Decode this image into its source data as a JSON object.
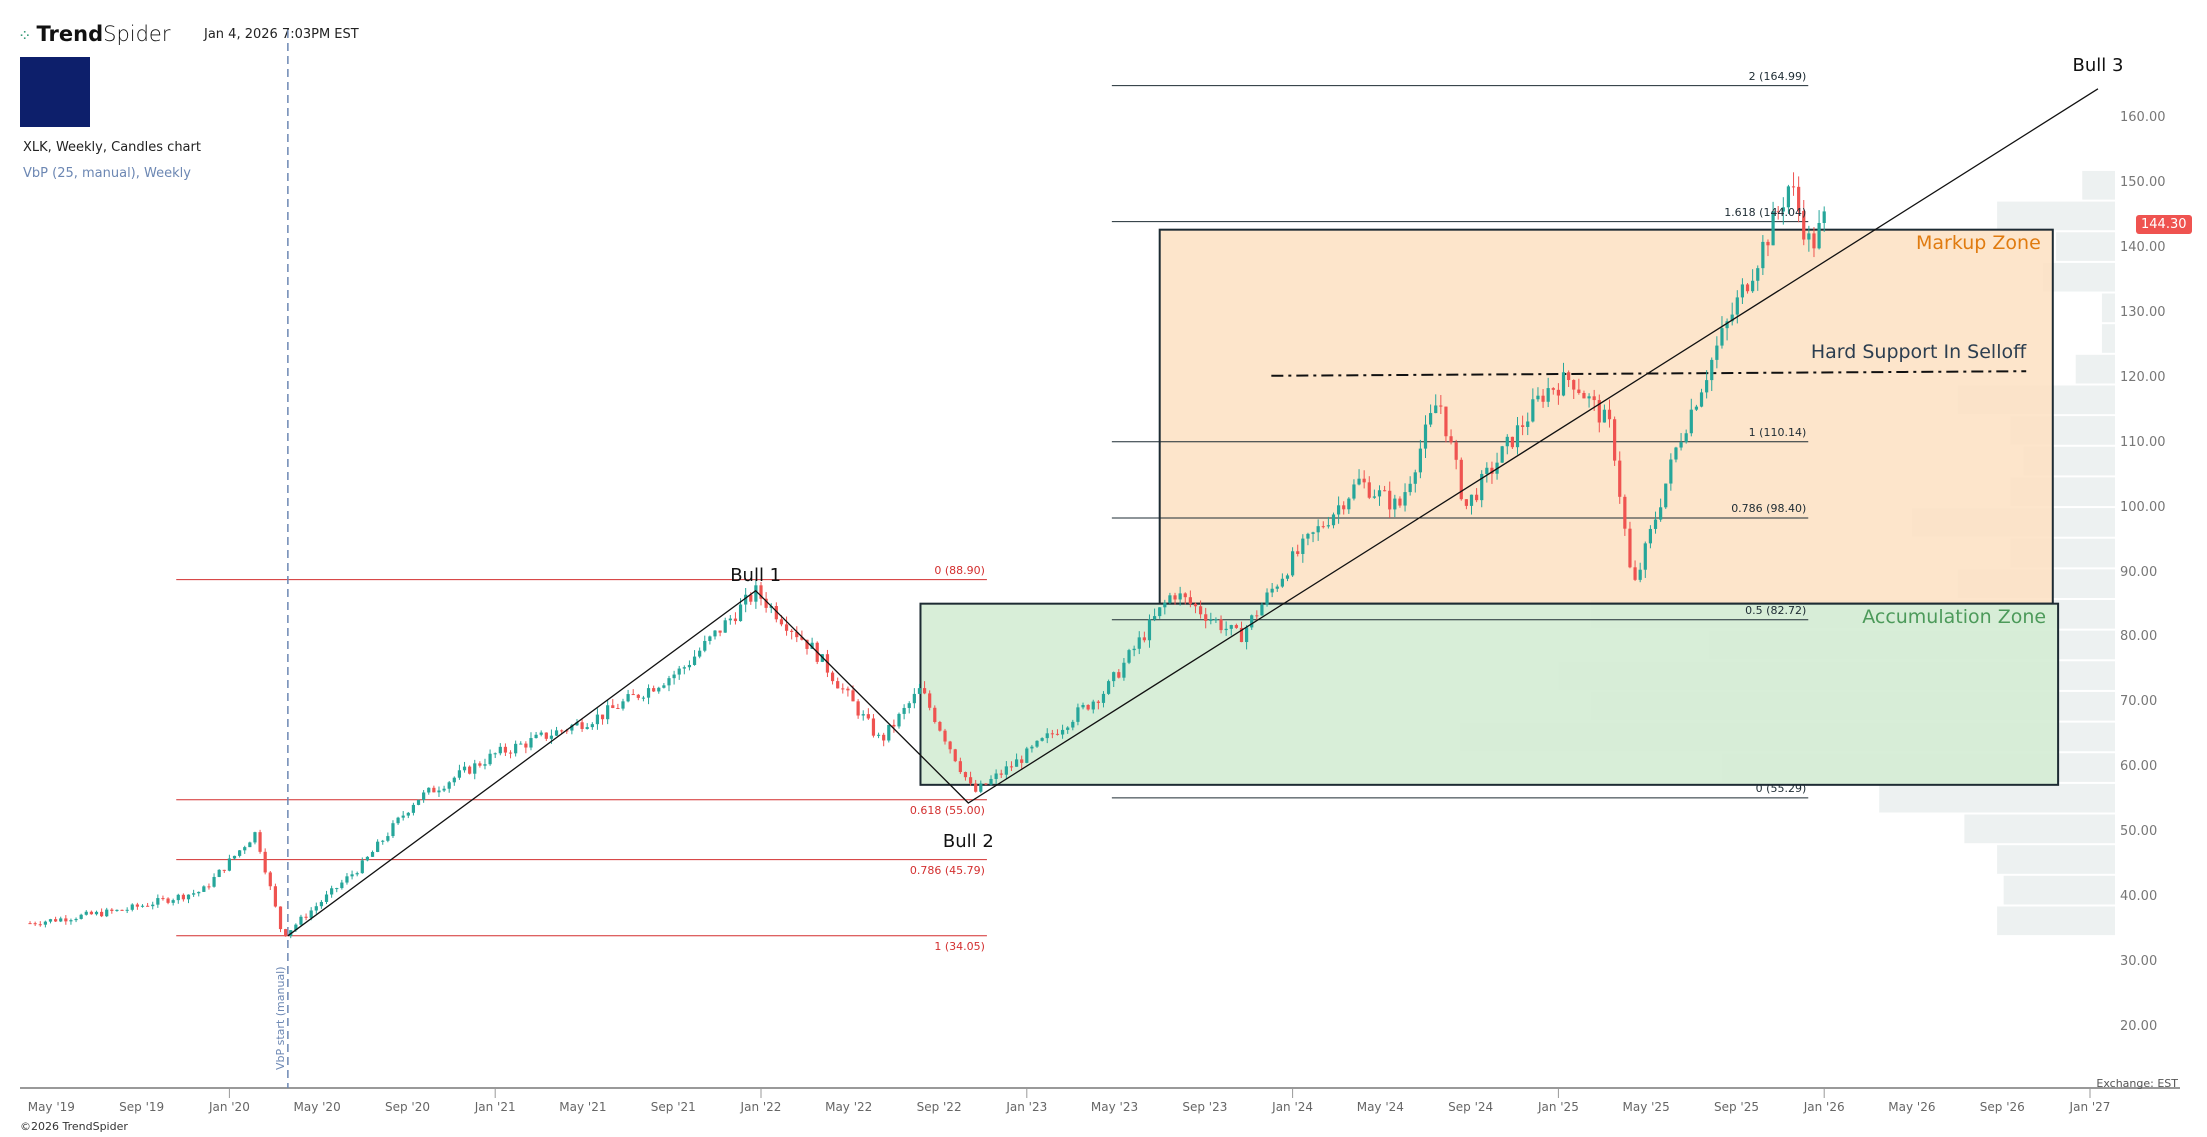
{
  "header": {
    "brand_bold": "Trend",
    "brand_light": "Spider",
    "timestamp": "Jan 4, 2026 7:03PM EST",
    "symbol_line": "XLK, Weekly, Candles chart",
    "indicator_line": "VbP (25, manual), Weekly"
  },
  "footer": {
    "copyright": "©2026 TrendSpider",
    "exchange": "Exchange: EST"
  },
  "colors": {
    "up": "#26a69a",
    "down": "#ef5350",
    "markup": "#fde0c2",
    "accum": "#d4ecd4",
    "red_fib": "#d32f2f"
  },
  "chart_data": {
    "type": "candlestick",
    "title": "XLK, Weekly, Candles chart",
    "last_price": "144.30",
    "y_ticks": [
      "160.00",
      "150.00",
      "140.00",
      "130.00",
      "120.00",
      "110.00",
      "100.00",
      "90.00",
      "80.00",
      "70.00",
      "60.00",
      "50.00",
      "40.00",
      "30.00",
      "20.00"
    ],
    "y_tick_values": [
      160,
      150,
      140,
      130,
      120,
      110,
      100,
      90,
      80,
      70,
      60,
      50,
      40,
      30,
      20
    ],
    "x_ticks": [
      [
        "May '19",
        2019.33
      ],
      [
        "Sep '19",
        2019.67
      ],
      [
        "Jan '20",
        2020.0
      ],
      [
        "May '20",
        2020.33
      ],
      [
        "Sep '20",
        2020.67
      ],
      [
        "Jan '21",
        2021.0
      ],
      [
        "May '21",
        2021.33
      ],
      [
        "Sep '21",
        2021.67
      ],
      [
        "Jan '22",
        2022.0
      ],
      [
        "May '22",
        2022.33
      ],
      [
        "Sep '22",
        2022.67
      ],
      [
        "Jan '23",
        2023.0
      ],
      [
        "May '23",
        2023.33
      ],
      [
        "Sep '23",
        2023.67
      ],
      [
        "Jan '24",
        2024.0
      ],
      [
        "May '24",
        2024.33
      ],
      [
        "Sep '24",
        2024.67
      ],
      [
        "Jan '25",
        2025.0
      ],
      [
        "May '25",
        2025.33
      ],
      [
        "Sep '25",
        2025.67
      ],
      [
        "Jan '26",
        2026.0
      ],
      [
        "May '26",
        2026.33
      ],
      [
        "Sep '26",
        2026.67
      ],
      [
        "Jan '27",
        2027.0
      ]
    ],
    "price_path": [
      [
        2019.25,
        36
      ],
      [
        2019.6,
        38
      ],
      [
        2019.9,
        41
      ],
      [
        2020.1,
        50
      ],
      [
        2020.2,
        34
      ],
      [
        2020.5,
        45
      ],
      [
        2020.7,
        55
      ],
      [
        2021.0,
        62
      ],
      [
        2021.4,
        68
      ],
      [
        2021.7,
        75
      ],
      [
        2021.98,
        87
      ],
      [
        2022.2,
        78
      ],
      [
        2022.45,
        64
      ],
      [
        2022.6,
        72
      ],
      [
        2022.8,
        56
      ],
      [
        2023.0,
        62
      ],
      [
        2023.3,
        72
      ],
      [
        2023.55,
        87
      ],
      [
        2023.8,
        80
      ],
      [
        2024.0,
        92
      ],
      [
        2024.25,
        104
      ],
      [
        2024.4,
        100
      ],
      [
        2024.55,
        117
      ],
      [
        2024.65,
        100
      ],
      [
        2024.95,
        118
      ],
      [
        2025.05,
        120
      ],
      [
        2025.2,
        112
      ],
      [
        2025.28,
        87
      ],
      [
        2025.45,
        110
      ],
      [
        2025.6,
        125
      ],
      [
        2025.8,
        143
      ],
      [
        2025.87,
        150
      ],
      [
        2025.95,
        140
      ],
      [
        2026.0,
        144.3
      ]
    ],
    "fib_red": {
      "range": [
        2019.8,
        2022.85
      ],
      "levels": [
        {
          "label": "0 (88.90)",
          "price": 88.9
        },
        {
          "label": "0.618 (55.00)",
          "price": 55.0
        },
        {
          "label": "0.786 (45.79)",
          "price": 45.79
        },
        {
          "label": "1 (34.05)",
          "price": 34.05
        }
      ]
    },
    "fib_black": {
      "range": [
        2023.32,
        2025.94
      ],
      "levels": [
        {
          "label": "2 (164.99)",
          "price": 164.99
        },
        {
          "label": "1.618 (144.04)",
          "price": 144.04
        },
        {
          "label": "1 (110.14)",
          "price": 110.14
        },
        {
          "label": "0.786 (98.40)",
          "price": 98.4
        },
        {
          "label": "0.5 (82.72)",
          "price": 82.72
        },
        {
          "label": "0 (55.29)",
          "price": 55.29
        }
      ]
    },
    "zones": [
      {
        "label": "Markup Zone",
        "t": [
          2023.5,
          2026.86
        ],
        "p": [
          85.2,
          142.8
        ]
      },
      {
        "label": "Accumulation Zone",
        "t": [
          2022.6,
          2026.88
        ],
        "p": [
          57.3,
          85.2
        ]
      }
    ],
    "support": {
      "label": "Hard Support In Selloff",
      "t": [
        2023.92,
        2026.76
      ],
      "p": [
        120.3,
        121.0
      ]
    },
    "waves": [
      {
        "label": "Bull 1",
        "t": 2021.98,
        "p": 87.2
      },
      {
        "label": "Bull 2",
        "t": 2022.78,
        "p": 54.5
      },
      {
        "label": "Bull 3",
        "t": 2027.03,
        "p": 164.5
      }
    ],
    "vbp_start": {
      "label": "VbP start (manual)",
      "t": 2020.22
    },
    "vbp": {
      "low": 34,
      "bin": 4.72,
      "volumes": [
        0.18,
        0.17,
        0.18,
        0.23,
        0.36,
        0.6,
        1.0,
        0.8,
        0.85,
        0.62,
        0.8,
        0.24,
        0.16,
        0.31,
        0.16,
        0.14,
        0.16,
        0.24,
        0.06,
        0.02,
        0.02,
        0.11,
        0.09,
        0.18,
        0.05
      ]
    }
  }
}
